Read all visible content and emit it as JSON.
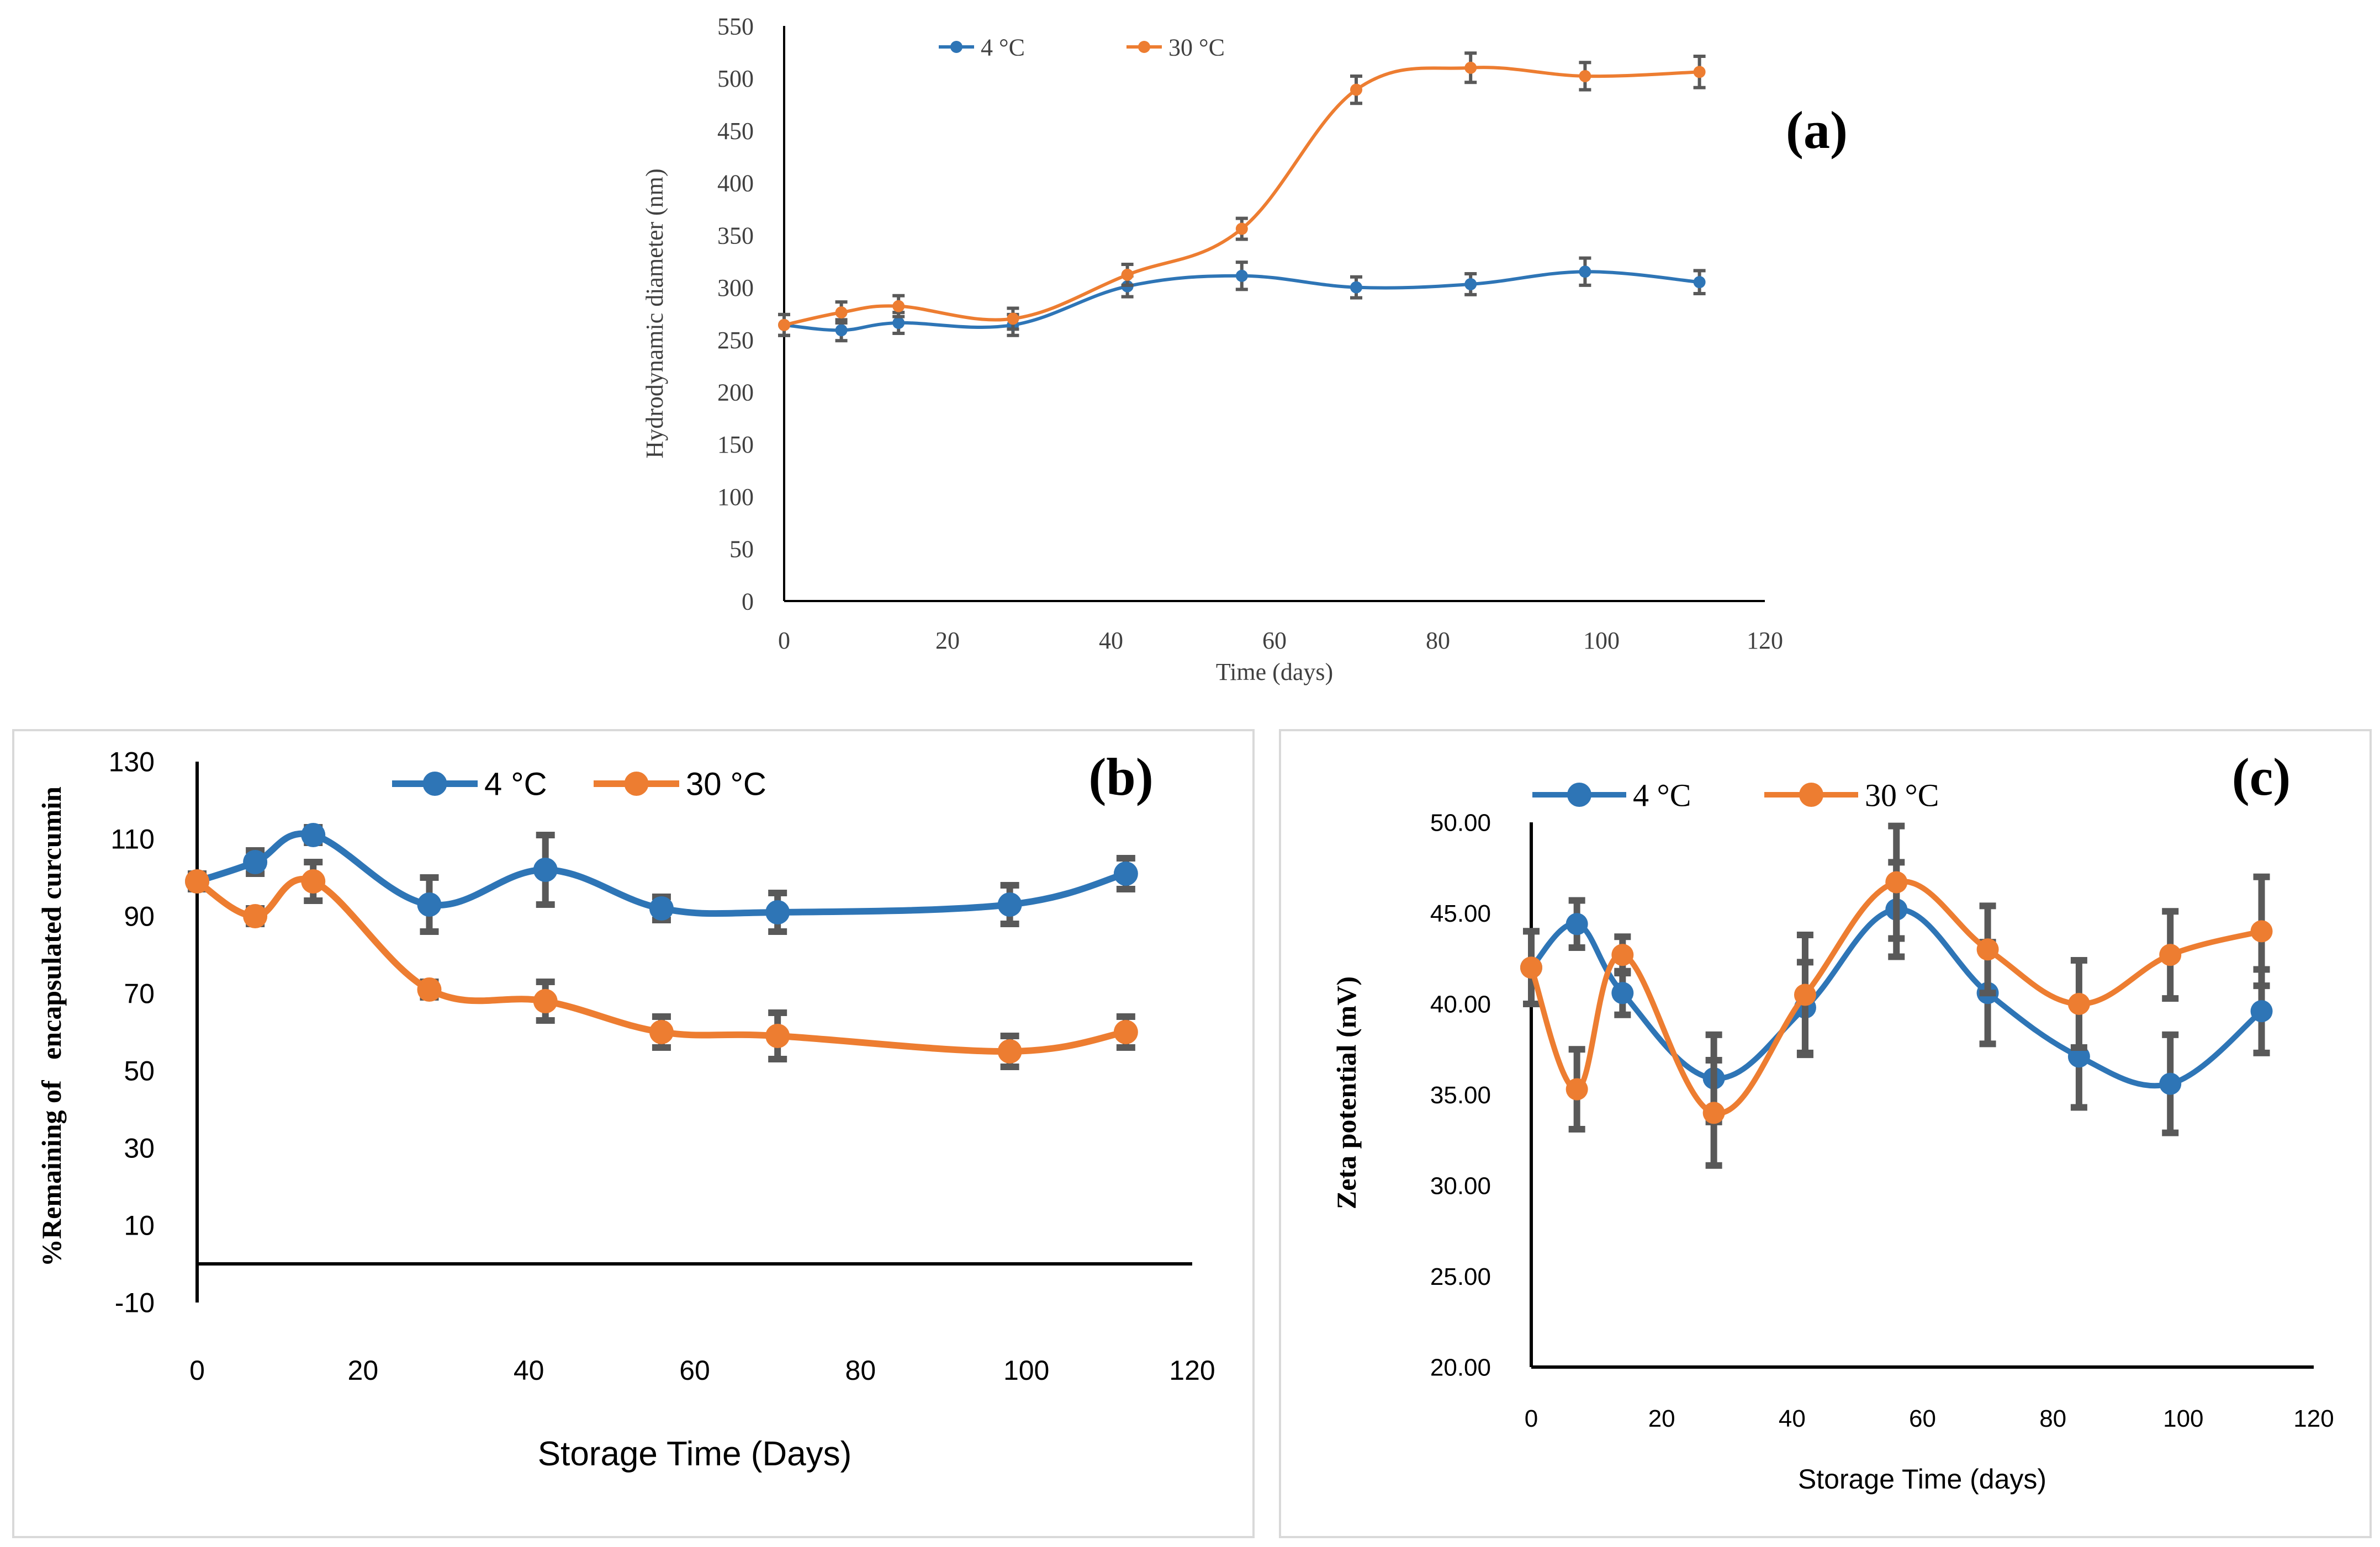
{
  "colors": {
    "blue": "#2E75B6",
    "orange": "#ED7D31",
    "errorbar": "#595959",
    "axis": "#000000",
    "frame": "#D9D9D9"
  },
  "chart_data": [
    {
      "id": "a",
      "type": "line",
      "panel_label": "(a)",
      "title": "",
      "xlabel": "Time (days)",
      "ylabel": "Hydrodynamic diameter (nm)",
      "xlim": [
        0,
        120
      ],
      "ylim": [
        0,
        550
      ],
      "xticks": [
        "0",
        "20",
        "40",
        "60",
        "80",
        "100",
        "120"
      ],
      "yticks": [
        "0",
        "50",
        "100",
        "150",
        "200",
        "250",
        "300",
        "350",
        "400",
        "450",
        "500",
        "550"
      ],
      "x": [
        0,
        7,
        14,
        28,
        42,
        56,
        70,
        84,
        98,
        112
      ],
      "series": [
        {
          "name": "4 °C",
          "color": "blue",
          "values": [
            264,
            259,
            266,
            264,
            301,
            311,
            300,
            303,
            315,
            305
          ],
          "errors": [
            10,
            10,
            10,
            10,
            10,
            13,
            10,
            10,
            13,
            11
          ]
        },
        {
          "name": "30 °C",
          "color": "orange",
          "values": [
            264,
            276,
            282,
            270,
            312,
            356,
            489,
            510,
            502,
            506
          ],
          "errors": [
            10,
            10,
            10,
            10,
            10,
            10,
            13,
            14,
            13,
            15
          ]
        }
      ],
      "legend": "top-center"
    },
    {
      "id": "b",
      "type": "line",
      "panel_label": "(b)",
      "title": "",
      "xlabel": "Storage Time (Days)",
      "ylabel": "%Remaining of   encapsulated curcumin",
      "xlim": [
        0,
        120
      ],
      "ylim": [
        -10,
        130
      ],
      "xticks": [
        "0",
        "20",
        "40",
        "60",
        "80",
        "100",
        "120"
      ],
      "yticks": [
        "-10",
        "10",
        "30",
        "50",
        "70",
        "90",
        "110",
        "130"
      ],
      "x": [
        0,
        7,
        14,
        28,
        42,
        56,
        70,
        98,
        112
      ],
      "series": [
        {
          "name": "4 °C",
          "color": "blue",
          "values": [
            99,
            104,
            111,
            93,
            102,
            92,
            91,
            93,
            101
          ],
          "errors": [
            2,
            3,
            2,
            7,
            9,
            3,
            5,
            5,
            4
          ]
        },
        {
          "name": "30 °C",
          "color": "orange",
          "values": [
            99,
            90,
            99,
            71,
            68,
            60,
            59,
            55,
            60
          ],
          "errors": [
            2,
            2,
            5,
            2,
            5,
            4,
            6,
            4,
            4
          ]
        }
      ],
      "legend": "top-center"
    },
    {
      "id": "c",
      "type": "line",
      "panel_label": "(c)",
      "title": "",
      "xlabel": "Storage Time (days)",
      "ylabel": "Zeta potential (mV)",
      "xlim": [
        0,
        120
      ],
      "ylim": [
        20,
        50
      ],
      "xticks": [
        "0",
        "20",
        "40",
        "60",
        "80",
        "100",
        "120"
      ],
      "yticks": [
        "20.00",
        "25.00",
        "30.00",
        "35.00",
        "40.00",
        "45.00",
        "50.00"
      ],
      "x": [
        0,
        7,
        14,
        28,
        42,
        56,
        70,
        84,
        98,
        112
      ],
      "series": [
        {
          "name": "4 °C",
          "color": "blue",
          "values": [
            42.0,
            44.4,
            40.6,
            35.9,
            39.8,
            45.2,
            40.6,
            37.1,
            35.6,
            39.6
          ],
          "errors": [
            2.0,
            1.3,
            1.2,
            2.4,
            2.5,
            2.6,
            2.8,
            2.8,
            2.7,
            2.3
          ]
        },
        {
          "name": "30 °C",
          "color": "orange",
          "values": [
            42.0,
            35.3,
            42.7,
            34.0,
            40.5,
            46.7,
            43.0,
            40.0,
            42.7,
            44.0
          ],
          "errors": [
            2.0,
            2.2,
            1.0,
            2.9,
            3.3,
            3.1,
            2.4,
            2.4,
            2.4,
            3.0
          ]
        }
      ],
      "legend": "top-left"
    }
  ]
}
